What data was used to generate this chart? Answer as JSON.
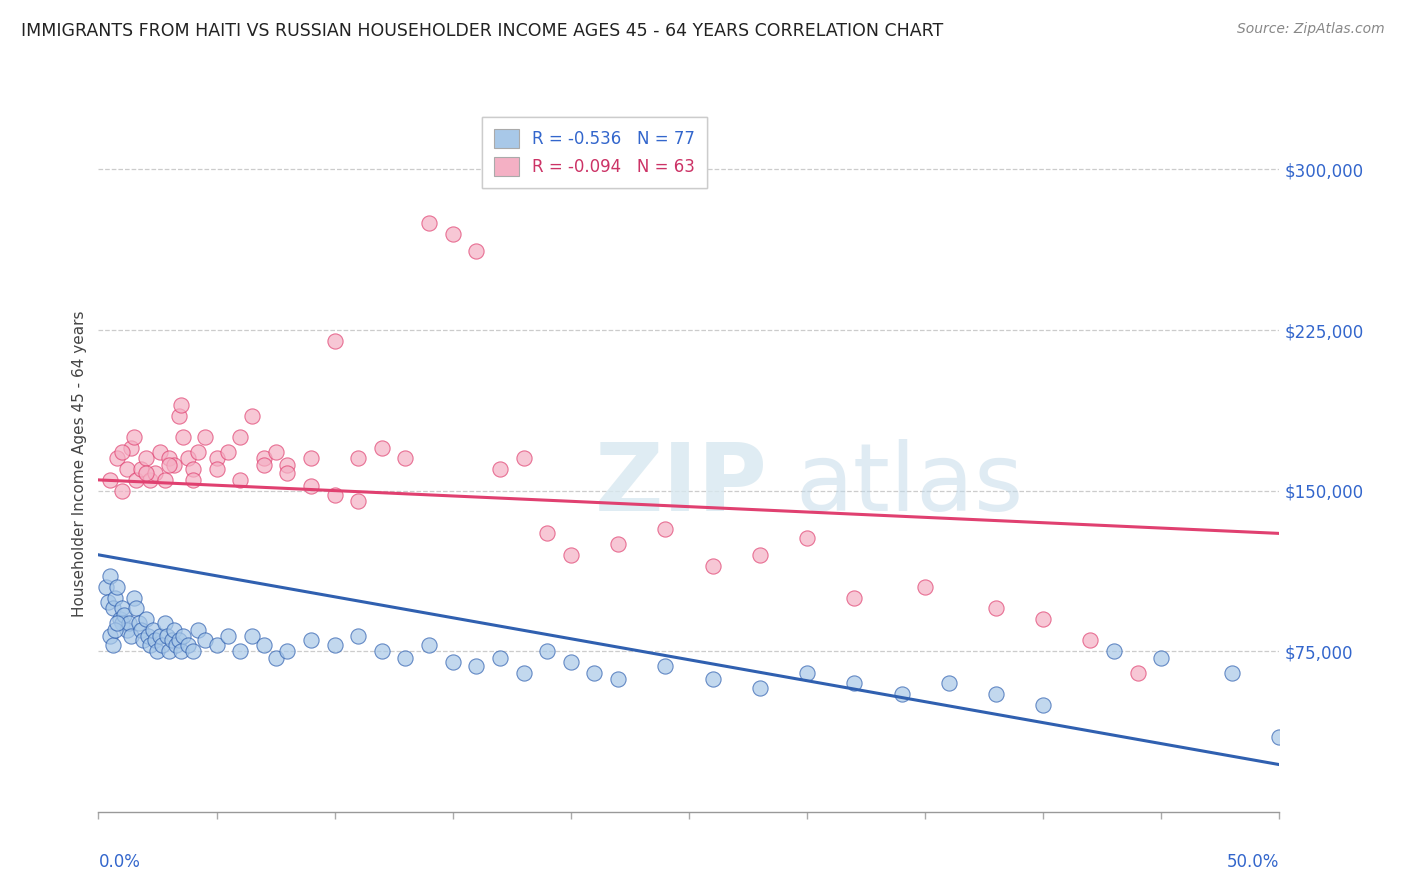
{
  "title": "IMMIGRANTS FROM HAITI VS RUSSIAN HOUSEHOLDER INCOME AGES 45 - 64 YEARS CORRELATION CHART",
  "source": "Source: ZipAtlas.com",
  "ylabel": "Householder Income Ages 45 - 64 years",
  "xmin": 0.0,
  "xmax": 50.0,
  "ymin": 0,
  "ymax": 325000,
  "yticks": [
    0,
    75000,
    150000,
    225000,
    300000
  ],
  "ytick_labels": [
    "",
    "$75,000",
    "$150,000",
    "$225,000",
    "$300,000"
  ],
  "legend_haiti_r": "R = -0.536",
  "legend_haiti_n": "N = 77",
  "legend_russia_r": "R = -0.094",
  "legend_russia_n": "N = 63",
  "haiti_color": "#a8c8e8",
  "russia_color": "#f4b0c4",
  "haiti_line_color": "#3060b0",
  "russia_line_color": "#e04070",
  "background_color": "#ffffff",
  "haiti_trend_x0": 0,
  "haiti_trend_y0": 120000,
  "haiti_trend_x1": 50,
  "haiti_trend_y1": 22000,
  "russia_trend_x0": 0,
  "russia_trend_y0": 155000,
  "russia_trend_x1": 50,
  "russia_trend_y1": 130000,
  "haiti_scatter_x": [
    0.3,
    0.4,
    0.5,
    0.6,
    0.7,
    0.8,
    0.9,
    1.0,
    1.0,
    1.1,
    1.2,
    1.3,
    1.4,
    1.5,
    1.6,
    1.7,
    1.8,
    1.9,
    2.0,
    2.1,
    2.2,
    2.3,
    2.4,
    2.5,
    2.6,
    2.7,
    2.8,
    2.9,
    3.0,
    3.1,
    3.2,
    3.3,
    3.4,
    3.5,
    3.6,
    3.8,
    4.0,
    4.2,
    4.5,
    5.0,
    5.5,
    6.0,
    6.5,
    7.0,
    7.5,
    8.0,
    9.0,
    10.0,
    11.0,
    12.0,
    13.0,
    14.0,
    15.0,
    16.0,
    17.0,
    18.0,
    19.0,
    20.0,
    21.0,
    22.0,
    24.0,
    26.0,
    28.0,
    30.0,
    32.0,
    34.0,
    36.0,
    38.0,
    40.0,
    43.0,
    45.0,
    48.0,
    50.0,
    0.5,
    0.6,
    0.7,
    0.8
  ],
  "haiti_scatter_y": [
    105000,
    98000,
    110000,
    95000,
    100000,
    105000,
    90000,
    88000,
    95000,
    92000,
    85000,
    88000,
    82000,
    100000,
    95000,
    88000,
    85000,
    80000,
    90000,
    82000,
    78000,
    85000,
    80000,
    75000,
    82000,
    78000,
    88000,
    82000,
    75000,
    80000,
    85000,
    78000,
    80000,
    75000,
    82000,
    78000,
    75000,
    85000,
    80000,
    78000,
    82000,
    75000,
    82000,
    78000,
    72000,
    75000,
    80000,
    78000,
    82000,
    75000,
    72000,
    78000,
    70000,
    68000,
    72000,
    65000,
    75000,
    70000,
    65000,
    62000,
    68000,
    62000,
    58000,
    65000,
    60000,
    55000,
    60000,
    55000,
    50000,
    75000,
    72000,
    65000,
    35000,
    82000,
    78000,
    85000,
    88000
  ],
  "russia_scatter_x": [
    0.5,
    0.8,
    1.0,
    1.2,
    1.4,
    1.5,
    1.6,
    1.8,
    2.0,
    2.2,
    2.4,
    2.6,
    2.8,
    3.0,
    3.2,
    3.4,
    3.5,
    3.6,
    3.8,
    4.0,
    4.2,
    4.5,
    5.0,
    5.5,
    6.0,
    6.5,
    7.0,
    7.5,
    8.0,
    9.0,
    10.0,
    11.0,
    12.0,
    13.0,
    14.0,
    15.0,
    16.0,
    17.0,
    18.0,
    19.0,
    20.0,
    22.0,
    24.0,
    26.0,
    28.0,
    30.0,
    32.0,
    35.0,
    38.0,
    40.0,
    42.0,
    44.0,
    1.0,
    2.0,
    3.0,
    4.0,
    5.0,
    6.0,
    7.0,
    8.0,
    9.0,
    10.0,
    11.0
  ],
  "russia_scatter_y": [
    155000,
    165000,
    150000,
    160000,
    170000,
    175000,
    155000,
    160000,
    165000,
    155000,
    158000,
    168000,
    155000,
    165000,
    162000,
    185000,
    190000,
    175000,
    165000,
    160000,
    168000,
    175000,
    165000,
    168000,
    175000,
    185000,
    165000,
    168000,
    162000,
    165000,
    220000,
    165000,
    170000,
    165000,
    275000,
    270000,
    262000,
    160000,
    165000,
    130000,
    120000,
    125000,
    132000,
    115000,
    120000,
    128000,
    100000,
    105000,
    95000,
    90000,
    80000,
    65000,
    168000,
    158000,
    162000,
    155000,
    160000,
    155000,
    162000,
    158000,
    152000,
    148000,
    145000
  ]
}
